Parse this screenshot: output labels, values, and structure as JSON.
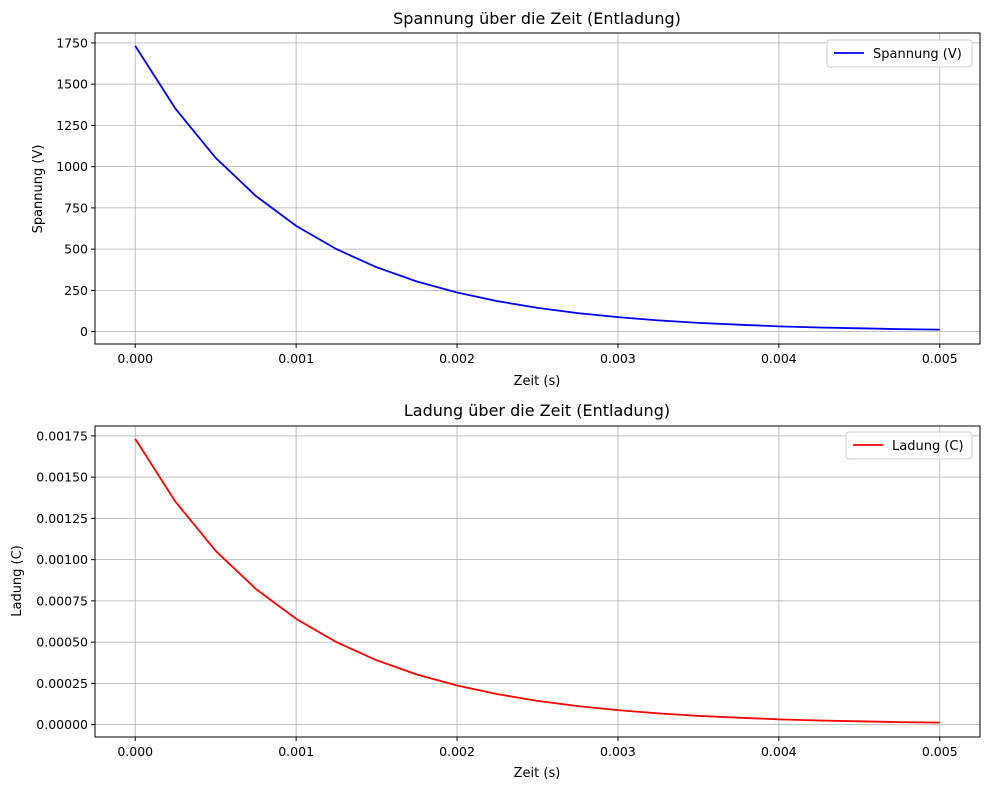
{
  "chart_data": [
    {
      "type": "line",
      "title": "Spannung über die Zeit (Entladung)",
      "xlabel": "Zeit (s)",
      "ylabel": "Spannung (V)",
      "xlim": [
        -0.00025,
        0.00525
      ],
      "ylim": [
        -75,
        1810
      ],
      "grid": true,
      "legend_position": "top-right",
      "x_ticks": [
        "0.000",
        "0.001",
        "0.002",
        "0.003",
        "0.004",
        "0.005"
      ],
      "x_tick_values": [
        0,
        0.001,
        0.002,
        0.003,
        0.004,
        0.005
      ],
      "y_ticks": [
        "0",
        "250",
        "500",
        "750",
        "1000",
        "1250",
        "1500",
        "1750"
      ],
      "y_tick_values": [
        0,
        250,
        500,
        750,
        1000,
        1250,
        1500,
        1750
      ],
      "series": [
        {
          "name": "Spannung (V)",
          "color": "#0000ff",
          "x": [
            0,
            0.00025,
            0.0005,
            0.00075,
            0.001,
            0.00125,
            0.0015,
            0.00175,
            0.002,
            0.00225,
            0.0025,
            0.00275,
            0.003,
            0.00325,
            0.0035,
            0.00375,
            0.004,
            0.00425,
            0.0045,
            0.00475,
            0.005
          ],
          "y": [
            1732,
            1351,
            1053,
            822,
            641,
            500,
            390,
            304,
            237,
            185,
            144,
            112,
            88,
            68,
            53,
            42,
            32,
            25,
            20,
            15,
            12
          ]
        }
      ]
    },
    {
      "type": "line",
      "title": "Ladung über die Zeit (Entladung)",
      "xlabel": "Zeit (s)",
      "ylabel": "Ladung (C)",
      "xlim": [
        -0.00025,
        0.00525
      ],
      "ylim": [
        -7.5e-05,
        0.00181
      ],
      "grid": true,
      "legend_position": "top-right",
      "x_ticks": [
        "0.000",
        "0.001",
        "0.002",
        "0.003",
        "0.004",
        "0.005"
      ],
      "x_tick_values": [
        0,
        0.001,
        0.002,
        0.003,
        0.004,
        0.005
      ],
      "y_ticks": [
        "0.00000",
        "0.00025",
        "0.00050",
        "0.00075",
        "0.00100",
        "0.00125",
        "0.00150",
        "0.00175"
      ],
      "y_tick_values": [
        0,
        0.00025,
        0.0005,
        0.00075,
        0.001,
        0.00125,
        0.0015,
        0.00175
      ],
      "series": [
        {
          "name": "Ladung (C)",
          "color": "#ff0000",
          "x": [
            0,
            0.00025,
            0.0005,
            0.00075,
            0.001,
            0.00125,
            0.0015,
            0.00175,
            0.002,
            0.00225,
            0.0025,
            0.00275,
            0.003,
            0.00325,
            0.0035,
            0.00375,
            0.004,
            0.00425,
            0.0045,
            0.00475,
            0.005
          ],
          "y": [
            0.001732,
            0.001351,
            0.001053,
            0.000822,
            0.000641,
            0.0005,
            0.00039,
            0.000304,
            0.000237,
            0.000185,
            0.000144,
            0.000112,
            8.8e-05,
            6.8e-05,
            5.3e-05,
            4.2e-05,
            3.2e-05,
            2.5e-05,
            2e-05,
            1.5e-05,
            1.2e-05
          ]
        }
      ]
    }
  ]
}
